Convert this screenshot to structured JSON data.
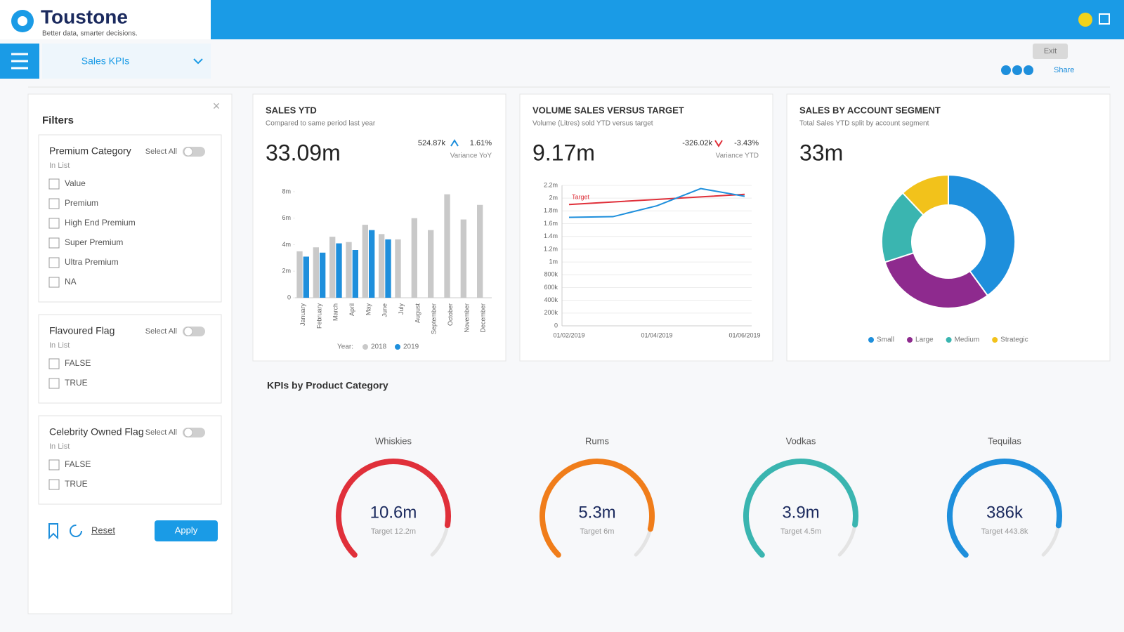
{
  "header": {
    "brand": "Toustone",
    "tagline": "Better data, smarter decisions.",
    "tab": "Sales KPIs",
    "exit": "Exit",
    "share": "Share"
  },
  "filters": {
    "title": "Filters",
    "groups": [
      {
        "title": "Premium Category",
        "subtitle": "In List",
        "select_all": "Select All",
        "options": [
          "Value",
          "Premium",
          "High End Premium",
          "Super Premium",
          "Ultra Premium",
          "NA"
        ]
      },
      {
        "title": "Flavoured Flag",
        "subtitle": "In List",
        "select_all": "Select All",
        "options": [
          "FALSE",
          "TRUE"
        ]
      },
      {
        "title": "Celebrity Owned Flag",
        "subtitle": "In List",
        "select_all": "Select All",
        "options": [
          "FALSE",
          "TRUE"
        ]
      }
    ],
    "reset": "Reset",
    "apply": "Apply"
  },
  "chart_data": [
    {
      "type": "bar",
      "title": "SALES YTD",
      "subtitle": "Compared to same period last year",
      "kpi": "33.09m",
      "variance": "524.87k",
      "variance_pct": "1.61%",
      "variance_label": "Variance YoY",
      "legend_title": "Year:",
      "categories": [
        "January",
        "February",
        "March",
        "April",
        "May",
        "June",
        "July",
        "August",
        "September",
        "October",
        "November",
        "December"
      ],
      "series": [
        {
          "name": "2018",
          "color": "#c9c9c9",
          "values": [
            3.5,
            3.8,
            4.6,
            4.2,
            5.5,
            4.8,
            4.4,
            6.0,
            5.1,
            7.8,
            5.9,
            7.0
          ]
        },
        {
          "name": "2019",
          "color": "#1e8fdc",
          "values": [
            3.1,
            3.4,
            4.1,
            3.6,
            5.1,
            4.4,
            null,
            null,
            null,
            null,
            null,
            null
          ]
        }
      ],
      "ylim": [
        0,
        9
      ],
      "yticks": [
        0,
        {
          "value": 2,
          "label": "2m"
        },
        {
          "value": 4,
          "label": "4m"
        },
        {
          "value": 6,
          "label": "6m"
        },
        {
          "value": 8,
          "label": "8m"
        }
      ]
    },
    {
      "type": "line",
      "title": "VOLUME SALES VERSUS TARGET",
      "subtitle": "Volume (Litres) sold YTD versus target",
      "kpi": "9.17m",
      "variance": "-326.02k",
      "variance_pct": "-3.43%",
      "variance_label": "Variance YTD",
      "categories": [
        "01/02/2019",
        null,
        "01/04/2019",
        null,
        "01/06/2019"
      ],
      "series": [
        {
          "name": "Target",
          "color": "#e0303a",
          "values": [
            1900,
            1940,
            1980,
            2020,
            2060
          ]
        },
        {
          "color": "#1e8fdc",
          "values": [
            1700,
            1710,
            1880,
            2150,
            2030
          ]
        }
      ],
      "ylim": [
        0,
        2200
      ],
      "yticks": [
        0,
        {
          "value": 200,
          "label": "200k"
        },
        {
          "value": 400,
          "label": "400k"
        },
        {
          "value": 600,
          "label": "600k"
        },
        {
          "value": 800,
          "label": "800k"
        },
        {
          "value": 1000,
          "label": "1m"
        },
        {
          "value": 1200,
          "label": "1.2m"
        },
        {
          "value": 1400,
          "label": "1.4m"
        },
        {
          "value": 1600,
          "label": "1.6m"
        },
        {
          "value": 1800,
          "label": "1.8m"
        },
        {
          "value": 2000,
          "label": "2m"
        },
        {
          "value": 2200,
          "label": "2.2m"
        }
      ],
      "grid": true
    },
    {
      "type": "pie",
      "title": "SALES BY ACCOUNT SEGMENT",
      "subtitle": "Total Sales YTD split by account segment",
      "kpi": "33m",
      "categories": [
        "Small",
        "Large",
        "Medium",
        "Strategic"
      ],
      "values": [
        40,
        30,
        18,
        12
      ],
      "colors": [
        "#1e8fdc",
        "#8e2a8e",
        "#3ab5b0",
        "#f2c21b"
      ]
    }
  ],
  "kpis": {
    "title": "KPIs by Product Category",
    "items": [
      {
        "name": "Whiskies",
        "value": 10.6,
        "value_label": "10.6m",
        "target": 12.2,
        "target_label": "Target 12.2m",
        "color": "#e0303a"
      },
      {
        "name": "Rums",
        "value": 5.3,
        "value_label": "5.3m",
        "target": 6,
        "target_label": "Target 6m",
        "color": "#f07d1a"
      },
      {
        "name": "Vodkas",
        "value": 3.9,
        "value_label": "3.9m",
        "target": 4.5,
        "target_label": "Target 4.5m",
        "color": "#3ab5b0"
      },
      {
        "name": "Tequilas",
        "value": 386,
        "value_label": "386k",
        "target": 443.8,
        "target_label": "Target 443.8k",
        "color": "#1e8fdc"
      }
    ]
  }
}
